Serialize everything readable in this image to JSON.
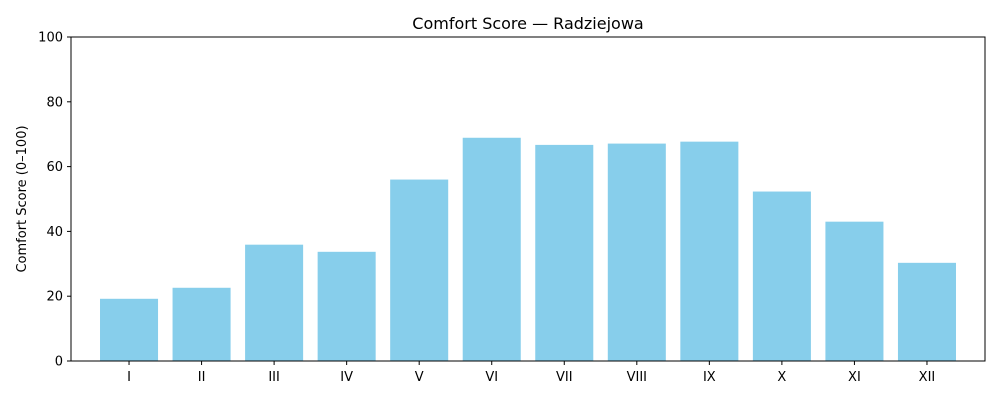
{
  "chart_data": {
    "type": "bar",
    "title": "Comfort Score — Radziejowa",
    "xlabel": "",
    "ylabel": "Comfort Score (0–100)",
    "categories": [
      "I",
      "II",
      "III",
      "IV",
      "V",
      "VI",
      "VII",
      "VIII",
      "IX",
      "X",
      "XI",
      "XII"
    ],
    "values": [
      19.2,
      22.6,
      35.9,
      33.7,
      56.0,
      68.9,
      66.7,
      67.1,
      67.7,
      52.3,
      43.0,
      30.3
    ],
    "ylim": [
      0,
      100
    ],
    "yticks": [
      "0",
      "20",
      "40",
      "60",
      "80",
      "100"
    ],
    "bar_color": "#87CEEB",
    "grid": false,
    "legend": "none"
  }
}
